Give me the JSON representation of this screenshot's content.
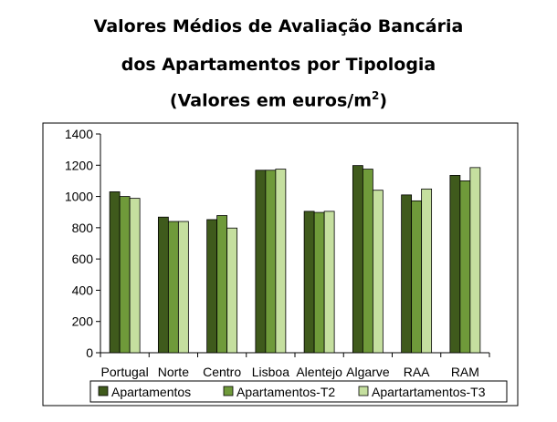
{
  "chart_data": {
    "type": "bar",
    "title_lines": [
      "Valores Médios de Avaliação Bancária",
      "dos Apartamentos por Tipologia",
      "(Valores em euros/m",
      "2",
      ")"
    ],
    "categories": [
      "Portugal",
      "Norte",
      "Centro",
      "Lisboa",
      "Alentejo",
      "Algarve",
      "RAA",
      "RAM"
    ],
    "series": [
      {
        "name": "Apartamentos",
        "color": "#3f5a1c",
        "values": [
          1030,
          868,
          852,
          1168,
          905,
          1198,
          1010,
          1135
        ]
      },
      {
        "name": "Apartamentos-T2",
        "color": "#6f9a3a",
        "values": [
          1000,
          840,
          878,
          1168,
          898,
          1175,
          972,
          1100
        ]
      },
      {
        "name": "Apartartamentos-T3",
        "color": "#c5df9f",
        "values": [
          988,
          840,
          798,
          1175,
          905,
          1040,
          1048,
          1185
        ]
      }
    ],
    "ylim": [
      0,
      1400
    ],
    "yticks": [
      0,
      200,
      400,
      600,
      800,
      1000,
      1200,
      1400
    ],
    "grid": false,
    "legend_position": "bottom"
  }
}
